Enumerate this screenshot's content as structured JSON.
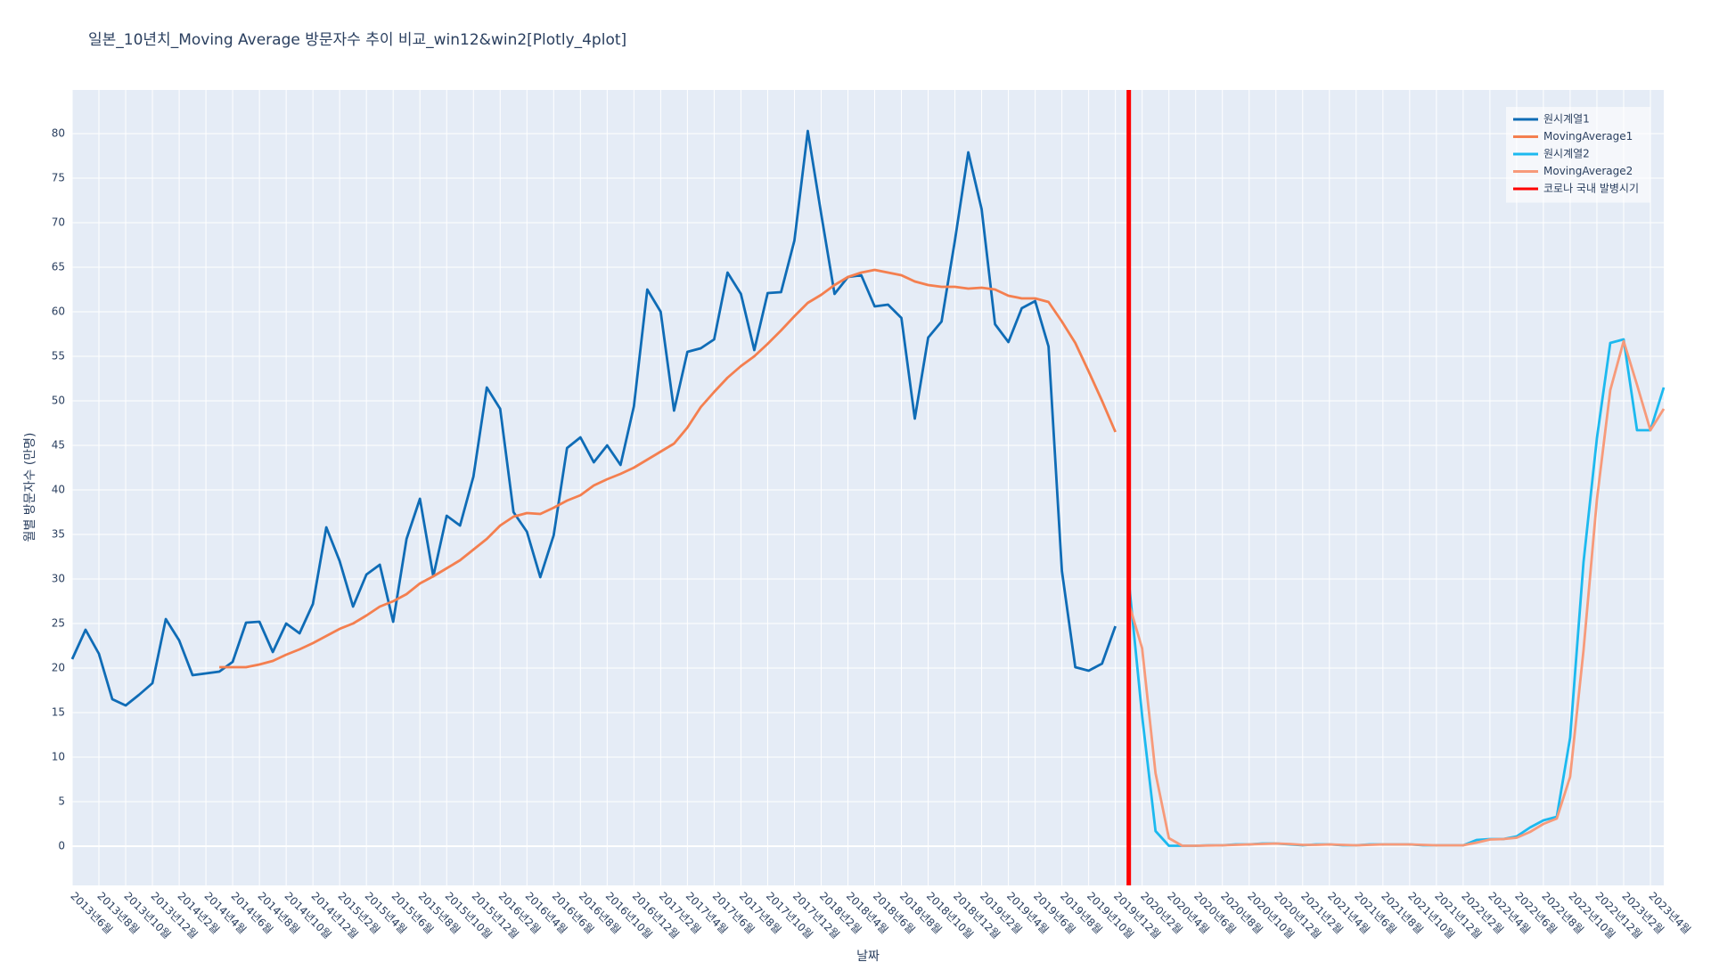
{
  "chart_data": {
    "type": "line",
    "title": "일본_10년치_Moving Average 방문자수 추이 비교_win12&win2[Plotly_4plot]",
    "x_label": "날짜",
    "y_label": "월별 방문자수 (만명)",
    "categories": [
      "2013년6월",
      null,
      "2013년8월",
      null,
      "2013년10월",
      null,
      "2013년12월",
      null,
      "2014년2월",
      null,
      "2014년4월",
      null,
      "2014년6월",
      null,
      "2014년8월",
      null,
      "2014년10월",
      null,
      "2014년12월",
      null,
      "2015년2월",
      null,
      "2015년4월",
      null,
      "2015년6월",
      null,
      "2015년8월",
      null,
      "2015년10월",
      null,
      "2015년12월",
      null,
      "2016년2월",
      null,
      "2016년4월",
      null,
      "2016년6월",
      null,
      "2016년8월",
      null,
      "2016년10월",
      null,
      "2016년12월",
      null,
      "2017년2월",
      null,
      "2017년4월",
      null,
      "2017년6월",
      null,
      "2017년8월",
      null,
      "2017년10월",
      null,
      "2017년12월",
      null,
      "2018년2월",
      null,
      "2018년4월",
      null,
      "2018년6월",
      null,
      "2018년8월",
      null,
      "2018년10월",
      null,
      "2018년12월",
      null,
      "2019년2월",
      null,
      "2019년4월",
      null,
      "2019년6월",
      null,
      "2019년8월",
      null,
      "2019년10월",
      null,
      "2019년12월",
      null,
      "2020년2월",
      null,
      "2020년4월",
      null,
      "2020년6월",
      null,
      "2020년8월",
      null,
      "2020년10월",
      null,
      "2020년12월",
      null,
      "2021년2월",
      null,
      "2021년4월",
      null,
      "2021년6월",
      null,
      "2021년8월",
      null,
      "2021년10월",
      null,
      "2021년12월",
      null,
      "2022년2월",
      null,
      "2022년4월",
      null,
      "2022년6월",
      null,
      "2022년8월",
      null,
      "2022년10월",
      null,
      "2022년12월",
      null,
      "2023년2월",
      null,
      "2023년4월",
      null
    ],
    "series": [
      {
        "name": "원시계열1",
        "color": "#0f6cb6",
        "values": [
          21.0,
          24.3,
          21.6,
          16.5,
          15.8,
          17.0,
          18.3,
          25.5,
          23.1,
          19.2,
          19.4,
          19.6,
          20.7,
          25.1,
          25.2,
          21.8,
          25.0,
          23.9,
          27.2,
          35.8,
          32.0,
          26.9,
          30.5,
          31.6,
          25.2,
          34.5,
          39.0,
          30.3,
          37.1,
          36.0,
          41.5,
          51.5,
          49.1,
          37.5,
          35.3,
          30.2,
          34.9,
          44.7,
          45.9,
          43.1,
          45.0,
          42.8,
          49.4,
          62.5,
          60.0,
          48.9,
          55.5,
          55.9,
          56.9,
          64.4,
          62.0,
          55.7,
          62.1,
          62.2,
          68.0,
          80.3,
          71.0,
          62.0,
          63.9,
          64.1,
          60.6,
          60.8,
          59.3,
          48.0,
          57.1,
          58.9,
          68.0,
          77.9,
          71.5,
          58.6,
          56.6,
          60.4,
          61.2,
          56.1,
          30.9,
          20.1,
          19.7,
          20.5,
          24.7,
          null,
          null,
          null,
          null,
          null,
          null,
          null,
          null,
          null,
          null,
          null,
          null,
          null,
          null,
          null,
          null,
          null,
          null,
          null,
          null,
          null,
          null,
          null,
          null,
          null,
          null,
          null,
          null,
          null,
          null,
          null,
          null,
          null,
          null,
          null,
          null,
          null,
          null,
          null,
          null,
          null
        ]
      },
      {
        "name": "MovingAverage1",
        "color": "#f47f4f",
        "values": [
          null,
          null,
          null,
          null,
          null,
          null,
          null,
          null,
          null,
          null,
          null,
          20.1,
          20.1,
          20.1,
          20.4,
          20.8,
          21.5,
          22.1,
          22.8,
          23.6,
          24.4,
          25.0,
          25.9,
          26.9,
          27.5,
          28.3,
          29.5,
          30.3,
          31.2,
          32.1,
          33.3,
          34.5,
          36.0,
          37.0,
          37.4,
          37.3,
          38.0,
          38.8,
          39.4,
          40.5,
          41.2,
          41.8,
          42.5,
          43.4,
          44.3,
          45.2,
          47.0,
          49.3,
          51.0,
          52.6,
          53.9,
          55.0,
          56.4,
          57.9,
          59.5,
          61.0,
          61.9,
          63.0,
          63.9,
          64.4,
          64.7,
          64.4,
          64.1,
          63.4,
          63.0,
          62.8,
          62.8,
          62.6,
          62.7,
          62.5,
          61.8,
          61.5,
          61.5,
          61.1,
          58.9,
          56.5,
          53.3,
          50.0,
          46.5,
          null,
          null,
          null,
          null,
          null,
          null,
          null,
          null,
          null,
          null,
          null,
          null,
          null,
          null,
          null,
          null,
          null,
          null,
          null,
          null,
          null,
          null,
          null,
          null,
          null,
          null,
          null,
          null,
          null,
          null,
          null,
          null,
          null,
          null,
          null,
          null,
          null,
          null,
          null,
          null,
          null
        ]
      },
      {
        "name": "원시계열2",
        "color": "#1cb9ef",
        "values": [
          null,
          null,
          null,
          null,
          null,
          null,
          null,
          null,
          null,
          null,
          null,
          null,
          null,
          null,
          null,
          null,
          null,
          null,
          null,
          null,
          null,
          null,
          null,
          null,
          null,
          null,
          null,
          null,
          null,
          null,
          null,
          null,
          null,
          null,
          null,
          null,
          null,
          null,
          null,
          null,
          null,
          null,
          null,
          null,
          null,
          null,
          null,
          null,
          null,
          null,
          null,
          null,
          null,
          null,
          null,
          null,
          null,
          null,
          null,
          null,
          null,
          null,
          null,
          null,
          null,
          null,
          null,
          null,
          null,
          null,
          null,
          null,
          null,
          null,
          null,
          null,
          null,
          null,
          null,
          29.8,
          14.6,
          1.7,
          0.05,
          0.05,
          0.05,
          0.1,
          0.1,
          0.2,
          0.2,
          0.3,
          0.3,
          0.2,
          0.1,
          0.2,
          0.2,
          0.1,
          0.1,
          0.2,
          0.2,
          0.2,
          0.2,
          0.1,
          0.1,
          0.1,
          0.1,
          0.7,
          0.8,
          0.8,
          1.1,
          2.1,
          2.9,
          3.3,
          12.2,
          31.9,
          45.8,
          56.5,
          56.9,
          46.7,
          46.7,
          51.5
        ]
      },
      {
        "name": "MovingAverage2",
        "color": "#f79a7a",
        "values": [
          null,
          null,
          null,
          null,
          null,
          null,
          null,
          null,
          null,
          null,
          null,
          null,
          null,
          null,
          null,
          null,
          null,
          null,
          null,
          null,
          null,
          null,
          null,
          null,
          null,
          null,
          null,
          null,
          null,
          null,
          null,
          null,
          null,
          null,
          null,
          null,
          null,
          null,
          null,
          null,
          null,
          null,
          null,
          null,
          null,
          null,
          null,
          null,
          null,
          null,
          null,
          null,
          null,
          null,
          null,
          null,
          null,
          null,
          null,
          null,
          null,
          null,
          null,
          null,
          null,
          null,
          null,
          null,
          null,
          null,
          null,
          null,
          null,
          null,
          null,
          null,
          null,
          null,
          null,
          27.3,
          22.2,
          8.2,
          0.9,
          0.05,
          0.05,
          0.08,
          0.1,
          0.15,
          0.2,
          0.25,
          0.3,
          0.25,
          0.15,
          0.15,
          0.2,
          0.15,
          0.1,
          0.15,
          0.2,
          0.2,
          0.2,
          0.15,
          0.1,
          0.1,
          0.1,
          0.4,
          0.75,
          0.8,
          0.95,
          1.6,
          2.5,
          3.1,
          7.8,
          22.0,
          38.9,
          51.2,
          56.7,
          51.8,
          46.7,
          49.1
        ]
      }
    ],
    "vline": {
      "name": "코로나 국내 발병시기",
      "color": "#ff0000",
      "x": 79
    },
    "ylim": [
      -4.4,
      84.9
    ],
    "yticks": [
      0,
      5,
      10,
      15,
      20,
      25,
      30,
      35,
      40,
      45,
      50,
      55,
      60,
      65,
      70,
      75,
      80
    ],
    "grid": true,
    "legend": "top-right"
  }
}
